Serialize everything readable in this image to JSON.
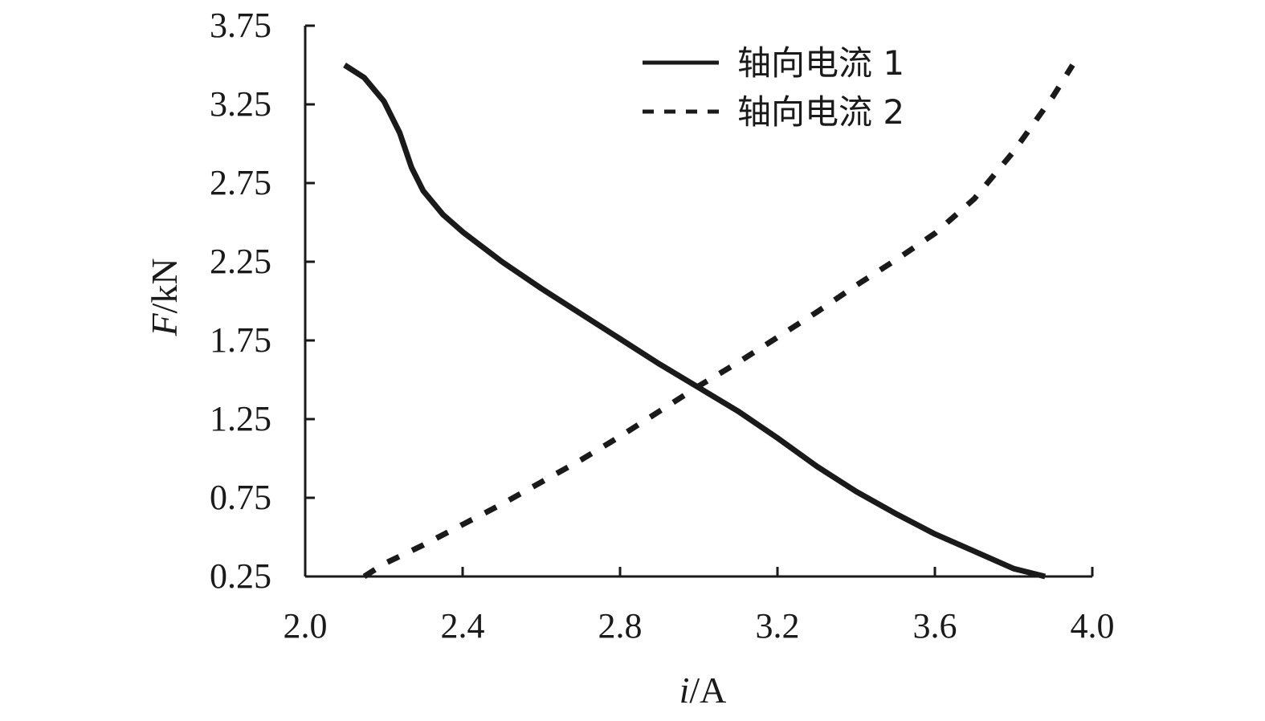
{
  "chart_data": {
    "type": "line",
    "title": "",
    "xlabel_var": "i",
    "xlabel_unit": "/A",
    "ylabel_var": "F",
    "ylabel_unit": "/kN",
    "xlim": [
      2.0,
      4.0
    ],
    "ylim": [
      0.25,
      3.75
    ],
    "x_ticks": [
      2.0,
      2.4,
      2.8,
      3.2,
      3.6,
      4.0
    ],
    "x_tick_labels": [
      "2.0",
      "2.4",
      "2.8",
      "3.2",
      "3.6",
      "4.0"
    ],
    "y_ticks": [
      0.25,
      0.75,
      1.25,
      1.75,
      2.25,
      2.75,
      3.25,
      3.75
    ],
    "y_tick_labels": [
      "0.25",
      "0.75",
      "1.25",
      "1.75",
      "2.25",
      "2.75",
      "3.25",
      "3.75"
    ],
    "grid": false,
    "legend_position": "top-right",
    "series": [
      {
        "name": "轴向电流 1",
        "style": "solid",
        "color": "#1a1a1a",
        "x": [
          2.1,
          2.15,
          2.2,
          2.24,
          2.27,
          2.3,
          2.35,
          2.4,
          2.5,
          2.6,
          2.7,
          2.8,
          2.9,
          3.0,
          3.1,
          3.2,
          3.3,
          3.4,
          3.5,
          3.6,
          3.7,
          3.8,
          3.88
        ],
        "y": [
          3.5,
          3.42,
          3.27,
          3.07,
          2.85,
          2.7,
          2.55,
          2.44,
          2.25,
          2.08,
          1.92,
          1.76,
          1.6,
          1.45,
          1.3,
          1.13,
          0.95,
          0.79,
          0.65,
          0.52,
          0.41,
          0.3,
          0.25
        ]
      },
      {
        "name": "轴向电流 2",
        "style": "dashed",
        "color": "#1a1a1a",
        "x": [
          2.15,
          2.2,
          2.3,
          2.4,
          2.5,
          2.6,
          2.7,
          2.8,
          2.9,
          3.0,
          3.1,
          3.2,
          3.3,
          3.4,
          3.5,
          3.6,
          3.7,
          3.8,
          3.9,
          3.95
        ],
        "y": [
          0.25,
          0.33,
          0.45,
          0.58,
          0.71,
          0.85,
          0.99,
          1.14,
          1.3,
          1.46,
          1.61,
          1.77,
          1.93,
          2.1,
          2.26,
          2.43,
          2.65,
          2.95,
          3.3,
          3.5
        ]
      }
    ]
  }
}
